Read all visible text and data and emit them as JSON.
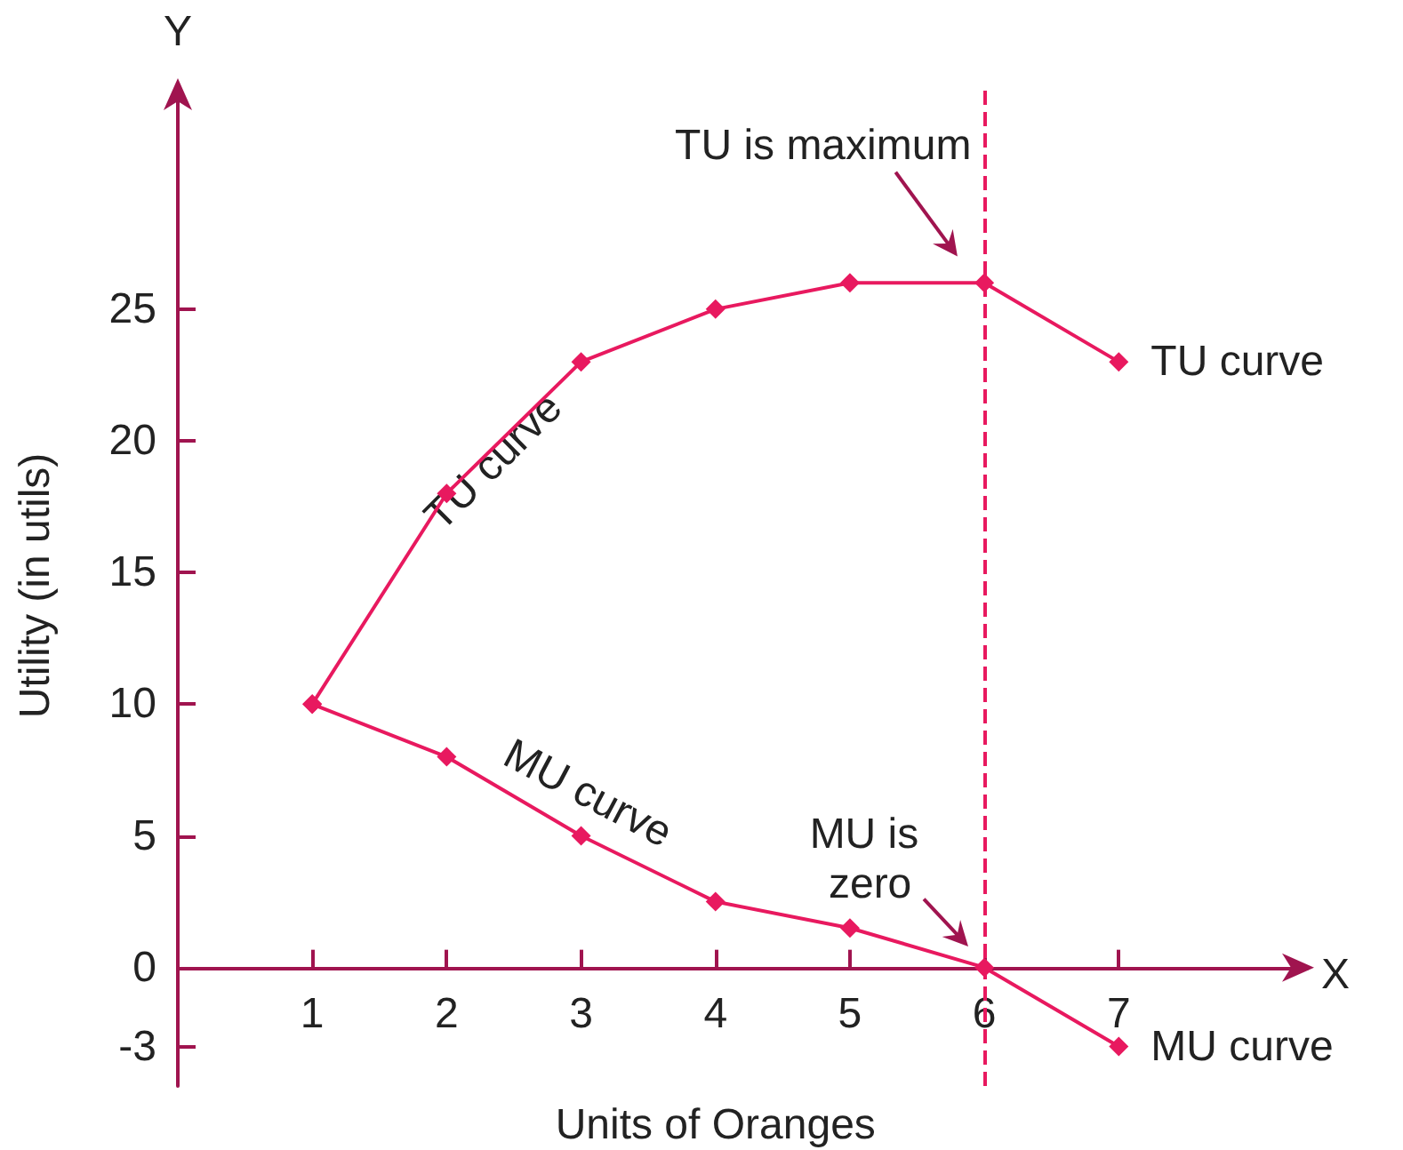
{
  "chart_data": {
    "type": "line",
    "xlabel": "Units of Oranges",
    "ylabel": "Utility (in utils)",
    "x": [
      1,
      2,
      3,
      4,
      5,
      6,
      7
    ],
    "series": [
      {
        "name": "TU curve",
        "color": "#e8195f",
        "values": [
          10,
          18,
          23,
          25,
          26,
          26,
          23
        ]
      },
      {
        "name": "MU curve",
        "color": "#e8195f",
        "values": [
          10,
          8,
          5,
          2.5,
          1.5,
          0,
          -3
        ]
      }
    ],
    "xlim": [
      0,
      8.4
    ],
    "xticks": [
      1,
      2,
      3,
      4,
      5,
      6,
      7
    ],
    "ylim": [
      -4.5,
      33.5
    ],
    "yticks": [
      -3,
      0,
      5,
      10,
      15,
      20,
      25
    ],
    "ref_lines": [
      {
        "axis": "x",
        "value": 6,
        "color": "#e8195f",
        "line_style": "dashed"
      }
    ],
    "annotations": [
      {
        "text": "TU is maximum",
        "x": 6,
        "y": 26
      },
      {
        "text": "MU is zero",
        "x": 6,
        "y": 0
      },
      "TU curve",
      "MU curve",
      "X",
      "Y"
    ],
    "marker": "diamond",
    "line_style": "solid",
    "grid": false,
    "legend": "left"
  }
}
